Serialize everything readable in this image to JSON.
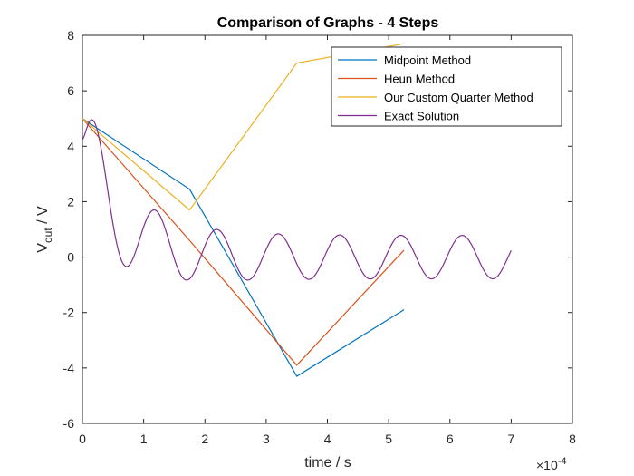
{
  "chart_data": {
    "type": "line",
    "title": "Comparison of Graphs - 4 Steps",
    "xlabel": "time / s",
    "ylabel": {
      "main": "V",
      "sub": "out",
      "rest": " / V"
    },
    "x_exponent": {
      "base": "×10",
      "power": "-4"
    },
    "xlim": [
      0,
      8
    ],
    "ylim": [
      -6,
      8
    ],
    "x_ticks": [
      0,
      1,
      2,
      3,
      4,
      5,
      6,
      7,
      8
    ],
    "y_ticks": [
      -6,
      -4,
      -2,
      0,
      2,
      4,
      6,
      8
    ],
    "x_units_note": "x values shown in units of 1e-4 s",
    "legend_position": "top-right",
    "series": [
      {
        "name": "Midpoint Method",
        "color": "#0072BD",
        "points": [
          [
            0,
            5
          ],
          [
            1.75,
            2.45
          ],
          [
            3.5,
            -4.3
          ],
          [
            5.25,
            -1.9
          ]
        ]
      },
      {
        "name": "Heun Method",
        "color": "#D95319",
        "points": [
          [
            0,
            5
          ],
          [
            1.75,
            0.6
          ],
          [
            3.5,
            -3.9
          ],
          [
            5.25,
            0.25
          ]
        ]
      },
      {
        "name": "Our Custom Quarter Method",
        "color": "#EDB120",
        "points": [
          [
            0,
            5
          ],
          [
            1.75,
            1.7
          ],
          [
            3.5,
            7.0
          ],
          [
            5.25,
            7.7
          ]
        ]
      },
      {
        "name": "Exact Solution",
        "color": "#7E2F8E",
        "formula": {
          "y0": 5,
          "damping_tau": 1.05,
          "osc_amp": 0.78,
          "period": 1.0,
          "x_end": 7.0
        }
      }
    ]
  }
}
